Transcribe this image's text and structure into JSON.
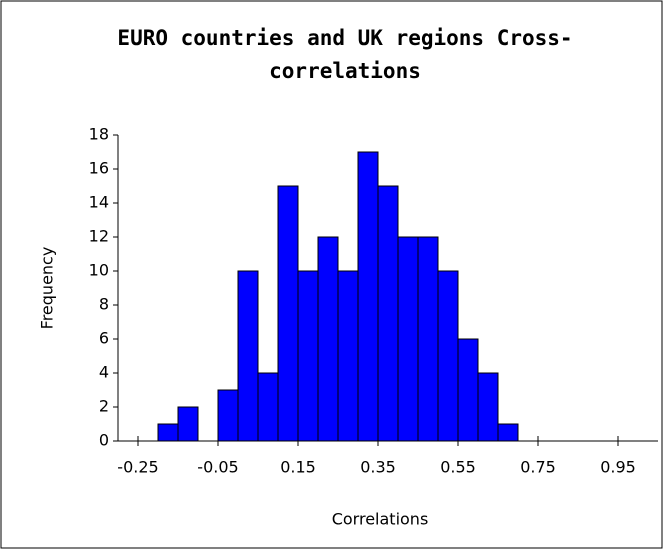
{
  "chart_data": {
    "type": "histogram",
    "title": "EURO countries and UK regions Cross-correlations",
    "x_label": "Correlations",
    "y_label": "Frequency",
    "bins": [
      -0.2,
      -0.15,
      -0.1,
      -0.05,
      0,
      0.05,
      0.1,
      0.15,
      0.2,
      0.25,
      0.3,
      0.35,
      0.4,
      0.45,
      0.5,
      0.55,
      0.6,
      0.65,
      0.7
    ],
    "values": [
      1,
      2,
      0,
      3,
      10,
      4,
      15,
      10,
      12,
      10,
      17,
      15,
      12,
      12,
      10,
      6,
      4,
      1
    ],
    "color": "#0000ff",
    "xlim": [
      -0.3,
      1.05
    ],
    "xticks": [
      -0.25,
      -0.05,
      0.15,
      0.35,
      0.55,
      0.75,
      0.95
    ],
    "ylim": [
      0,
      18
    ],
    "yticks": [
      0,
      2,
      4,
      6,
      8,
      10,
      12,
      14,
      16,
      18
    ]
  }
}
